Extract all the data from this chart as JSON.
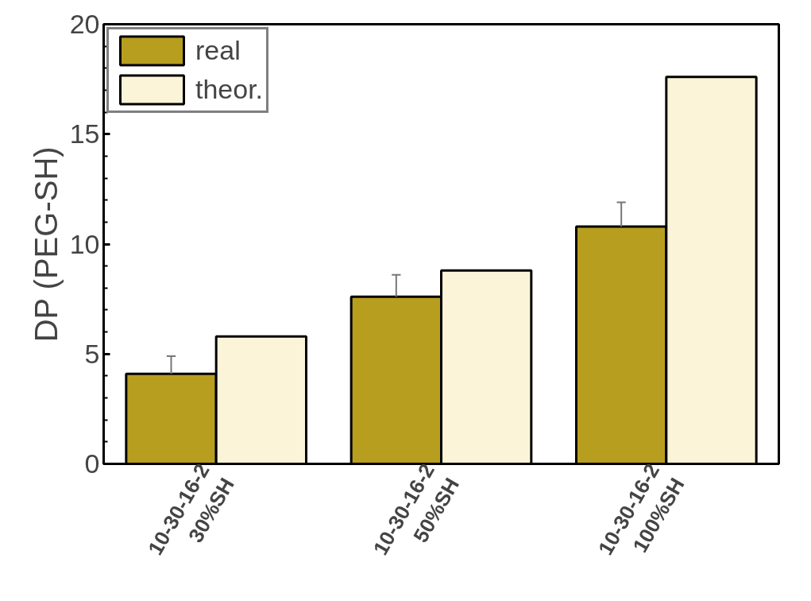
{
  "chart_data": {
    "type": "bar",
    "ylabel": "DP (PEG-SH)",
    "categories": [
      "10-30-16-2\n30%SH",
      "10-30-16-2\n50%SH",
      "10-30-16-2\n100%SH"
    ],
    "series": [
      {
        "name": "real",
        "color": "#b89e1e",
        "values": [
          4.1,
          7.6,
          10.8
        ],
        "errors": [
          [
            4.1,
            4.9
          ],
          [
            7.6,
            8.6
          ],
          [
            10.8,
            11.9
          ]
        ]
      },
      {
        "name": "theor.",
        "color": "#fbf4d8",
        "values": [
          5.8,
          8.8,
          17.6
        ]
      }
    ],
    "ylim": [
      0,
      20
    ],
    "yticks": [
      0,
      5,
      10,
      15,
      20
    ],
    "grid": false,
    "legend": "top left"
  }
}
